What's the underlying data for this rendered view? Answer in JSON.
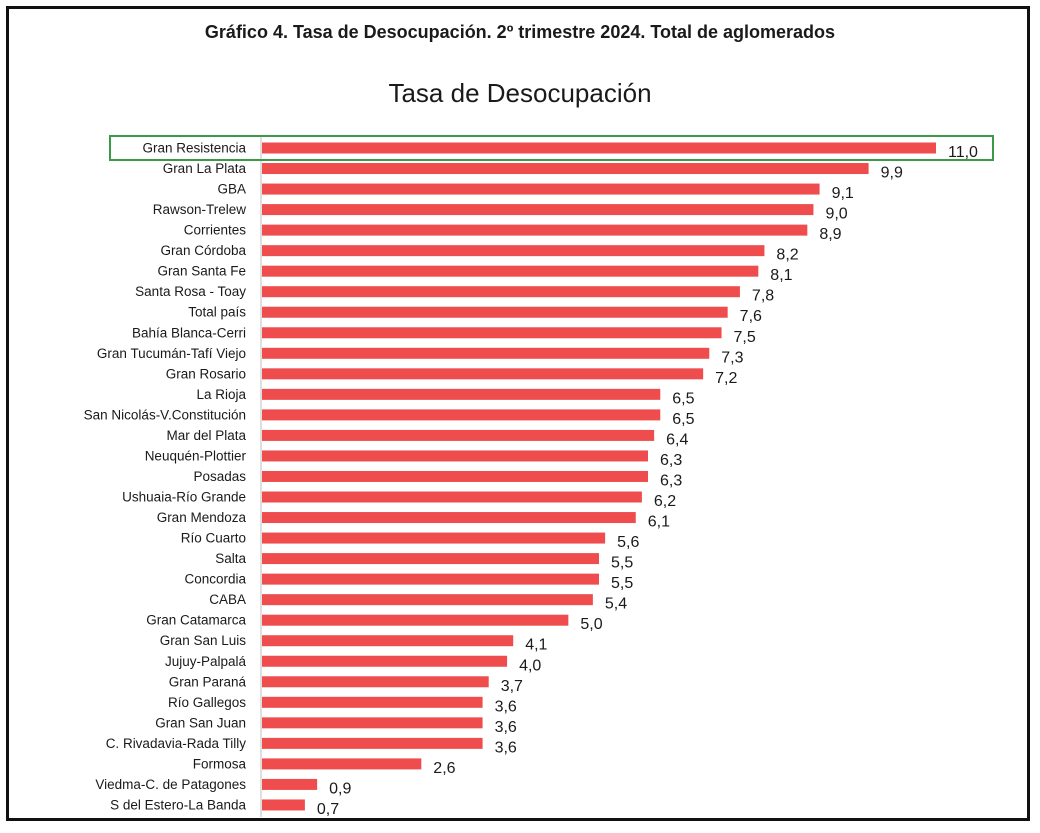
{
  "figure_title": "Gráfico 4. Tasa de Desocupación. 2º trimestre 2024. Total de aglomerados",
  "colors": {
    "bar": "#ef4d4d",
    "highlight_box": "#3a9a4a",
    "axis": "#bfbfbf",
    "text": "#1a1a1a"
  },
  "highlighted_category": "Gran Resistencia",
  "chart_data": {
    "type": "bar",
    "orientation": "horizontal",
    "title": "Tasa de Desocupación",
    "xlabel": "",
    "ylabel": "",
    "xlim": [
      0,
      11.0
    ],
    "grid": false,
    "legend": "none",
    "categories": [
      "Gran Resistencia",
      "Gran La Plata",
      "GBA",
      "Rawson-Trelew",
      "Corrientes",
      "Gran Córdoba",
      "Gran Santa Fe",
      "Santa Rosa - Toay",
      "Total país",
      "Bahía Blanca-Cerri",
      "Gran Tucumán-Tafí Viejo",
      "Gran Rosario",
      "La Rioja",
      "San Nicolás-V.Constitución",
      "Mar del Plata",
      "Neuquén-Plottier",
      "Posadas",
      "Ushuaia-Río Grande",
      "Gran Mendoza",
      "Río Cuarto",
      "Salta",
      "Concordia",
      "CABA",
      "Gran Catamarca",
      "Gran San Luis",
      "Jujuy-Palpalá",
      "Gran Paraná",
      "Río Gallegos",
      "Gran San Juan",
      "C. Rivadavia-Rada Tilly",
      "Formosa",
      "Viedma-C. de Patagones",
      "S del Estero-La Banda"
    ],
    "values": [
      11.0,
      9.9,
      9.1,
      9.0,
      8.9,
      8.2,
      8.1,
      7.8,
      7.6,
      7.5,
      7.3,
      7.2,
      6.5,
      6.5,
      6.4,
      6.3,
      6.3,
      6.2,
      6.1,
      5.6,
      5.5,
      5.5,
      5.4,
      5.0,
      4.1,
      4.0,
      3.7,
      3.6,
      3.6,
      3.6,
      2.6,
      0.9,
      0.7
    ],
    "value_labels": [
      "11,0",
      "9,9",
      "9,1",
      "9,0",
      "8,9",
      "8,2",
      "8,1",
      "7,8",
      "7,6",
      "7,5",
      "7,3",
      "7,2",
      "6,5",
      "6,5",
      "6,4",
      "6,3",
      "6,3",
      "6,2",
      "6,1",
      "5,6",
      "5,5",
      "5,5",
      "5,4",
      "5,0",
      "4,1",
      "4,0",
      "3,7",
      "3,6",
      "3,6",
      "3,6",
      "2,6",
      "0,9",
      "0,7"
    ]
  }
}
